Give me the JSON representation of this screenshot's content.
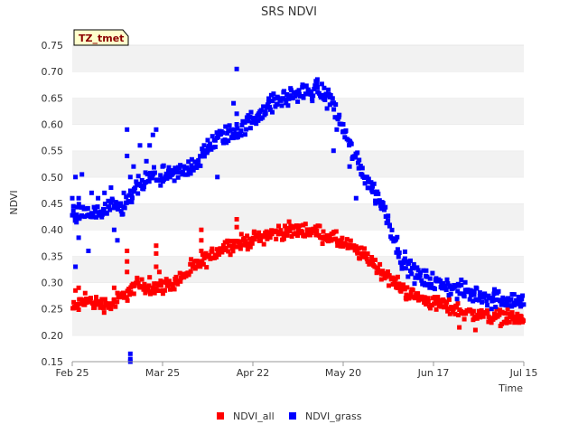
{
  "chart_data": {
    "type": "scatter",
    "title": "SRS NDVI",
    "xlabel": "Time",
    "ylabel": "NDVI",
    "ylim": [
      0.15,
      0.75
    ],
    "yticks": [
      0.15,
      0.2,
      0.25,
      0.3,
      0.35,
      0.4,
      0.45,
      0.5,
      0.55,
      0.6,
      0.65,
      0.7,
      0.75
    ],
    "ytick_labels": [
      "0.15",
      "0.20",
      "0.25",
      "0.30",
      "0.35",
      "0.40",
      "0.45",
      "0.50",
      "0.55",
      "0.60",
      "0.65",
      "0.70",
      "0.75"
    ],
    "x_range_days": [
      0,
      140
    ],
    "xticks_days": [
      0,
      28,
      56,
      84,
      112,
      140
    ],
    "xtick_labels": [
      "Feb 25",
      "Mar 25",
      "Apr 22",
      "May 20",
      "Jun 17",
      "Jul 15"
    ],
    "badge": "TZ_tmet",
    "legend_position": "bottom-center",
    "grid": "horizontal bands",
    "series": [
      {
        "name": "NDVI_all",
        "color": "#ff0000",
        "trend": [
          [
            0,
            0.25
          ],
          [
            4,
            0.265
          ],
          [
            8,
            0.26
          ],
          [
            12,
            0.258
          ],
          [
            16,
            0.275
          ],
          [
            20,
            0.295
          ],
          [
            25,
            0.29
          ],
          [
            30,
            0.295
          ],
          [
            34,
            0.31
          ],
          [
            38,
            0.33
          ],
          [
            42,
            0.345
          ],
          [
            45,
            0.36
          ],
          [
            48,
            0.37
          ],
          [
            52,
            0.375
          ],
          [
            56,
            0.382
          ],
          [
            60,
            0.39
          ],
          [
            64,
            0.395
          ],
          [
            68,
            0.398
          ],
          [
            72,
            0.4
          ],
          [
            76,
            0.395
          ],
          [
            80,
            0.385
          ],
          [
            84,
            0.375
          ],
          [
            88,
            0.36
          ],
          [
            92,
            0.345
          ],
          [
            96,
            0.32
          ],
          [
            100,
            0.3
          ],
          [
            104,
            0.28
          ],
          [
            108,
            0.27
          ],
          [
            112,
            0.262
          ],
          [
            116,
            0.255
          ],
          [
            120,
            0.248
          ],
          [
            124,
            0.24
          ],
          [
            128,
            0.238
          ],
          [
            132,
            0.235
          ],
          [
            136,
            0.232
          ],
          [
            140,
            0.23
          ]
        ],
        "spread": 0.012,
        "outliers": [
          [
            1,
            0.285
          ],
          [
            2,
            0.29
          ],
          [
            4,
            0.28
          ],
          [
            13,
            0.29
          ],
          [
            17,
            0.36
          ],
          [
            17,
            0.34
          ],
          [
            17,
            0.32
          ],
          [
            24,
            0.31
          ],
          [
            26,
            0.37
          ],
          [
            26,
            0.355
          ],
          [
            26,
            0.33
          ],
          [
            27,
            0.32
          ],
          [
            40,
            0.38
          ],
          [
            40,
            0.36
          ],
          [
            40,
            0.4
          ],
          [
            51,
            0.42
          ],
          [
            51,
            0.405
          ],
          [
            120,
            0.215
          ],
          [
            125,
            0.21
          ],
          [
            135,
            0.25
          ],
          [
            139,
            0.255
          ]
        ]
      },
      {
        "name": "NDVI_grass",
        "color": "#0000ff",
        "trend": [
          [
            0,
            0.43
          ],
          [
            4,
            0.43
          ],
          [
            8,
            0.43
          ],
          [
            12,
            0.44
          ],
          [
            16,
            0.44
          ],
          [
            20,
            0.48
          ],
          [
            25,
            0.5
          ],
          [
            30,
            0.5
          ],
          [
            34,
            0.51
          ],
          [
            38,
            0.525
          ],
          [
            42,
            0.55
          ],
          [
            45,
            0.575
          ],
          [
            48,
            0.58
          ],
          [
            52,
            0.588
          ],
          [
            56,
            0.61
          ],
          [
            60,
            0.632
          ],
          [
            64,
            0.645
          ],
          [
            68,
            0.655
          ],
          [
            72,
            0.66
          ],
          [
            76,
            0.665
          ],
          [
            80,
            0.652
          ],
          [
            82,
            0.62
          ],
          [
            84,
            0.59
          ],
          [
            86,
            0.56
          ],
          [
            88,
            0.535
          ],
          [
            90,
            0.51
          ],
          [
            92,
            0.49
          ],
          [
            94,
            0.47
          ],
          [
            96,
            0.45
          ],
          [
            98,
            0.42
          ],
          [
            100,
            0.38
          ],
          [
            102,
            0.35
          ],
          [
            104,
            0.33
          ],
          [
            106,
            0.318
          ],
          [
            108,
            0.31
          ],
          [
            112,
            0.3
          ],
          [
            116,
            0.294
          ],
          [
            120,
            0.285
          ],
          [
            124,
            0.278
          ],
          [
            128,
            0.275
          ],
          [
            132,
            0.27
          ],
          [
            136,
            0.268
          ],
          [
            140,
            0.262
          ]
        ],
        "spread": 0.015,
        "outliers": [
          [
            0,
            0.46
          ],
          [
            1,
            0.5
          ],
          [
            2,
            0.46
          ],
          [
            3,
            0.505
          ],
          [
            1,
            0.33
          ],
          [
            2,
            0.385
          ],
          [
            5,
            0.36
          ],
          [
            6,
            0.47
          ],
          [
            8,
            0.46
          ],
          [
            10,
            0.47
          ],
          [
            12,
            0.48
          ],
          [
            13,
            0.4
          ],
          [
            14,
            0.38
          ],
          [
            15,
            0.45
          ],
          [
            16,
            0.47
          ],
          [
            17,
            0.59
          ],
          [
            17,
            0.54
          ],
          [
            18,
            0.5
          ],
          [
            19,
            0.52
          ],
          [
            21,
            0.56
          ],
          [
            23,
            0.53
          ],
          [
            24,
            0.56
          ],
          [
            25,
            0.58
          ],
          [
            26,
            0.59
          ],
          [
            28,
            0.52
          ],
          [
            18,
            0.165
          ],
          [
            18,
            0.155
          ],
          [
            18,
            0.15
          ],
          [
            42,
            0.57
          ],
          [
            45,
            0.5
          ],
          [
            51,
            0.575
          ],
          [
            51,
            0.6
          ],
          [
            51,
            0.62
          ],
          [
            51,
            0.705
          ],
          [
            50,
            0.64
          ],
          [
            76,
            0.685
          ],
          [
            79,
            0.63
          ],
          [
            82,
            0.59
          ],
          [
            84,
            0.6
          ],
          [
            81,
            0.55
          ],
          [
            86,
            0.52
          ],
          [
            88,
            0.46
          ],
          [
            94,
            0.45
          ],
          [
            96,
            0.44
          ],
          [
            130,
            0.25
          ],
          [
            139,
            0.255
          ]
        ]
      }
    ]
  }
}
